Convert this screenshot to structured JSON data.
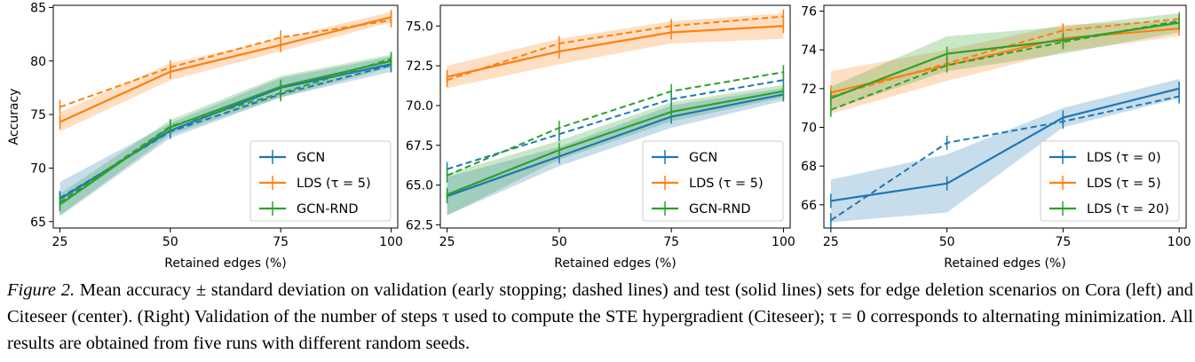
{
  "colors": {
    "blue": "#1f77b4",
    "orange": "#ff7f0e",
    "green": "#2ca02c"
  },
  "chart_data": [
    {
      "type": "line",
      "name": "cora",
      "xlabel": "Retained edges (%)",
      "ylabel": "Accuracy",
      "x": [
        25,
        50,
        75,
        100
      ],
      "xticks": [
        "25",
        "50",
        "75",
        "100"
      ],
      "yticks": [
        65,
        70,
        75,
        80,
        85
      ],
      "ytick_labels": [
        "65",
        "70",
        "75",
        "80",
        "85"
      ],
      "xlim": [
        23.5,
        101.5
      ],
      "ylim": [
        64.4,
        85.2
      ],
      "legend_position": "lower-right",
      "series": [
        {
          "name": "GCN",
          "color_key": "blue",
          "test": [
            67.1,
            73.5,
            77.5,
            79.7
          ],
          "std": [
            1.6,
            0.7,
            0.9,
            0.7
          ],
          "val": [
            67.2,
            73.4,
            76.9,
            79.6
          ]
        },
        {
          "name": "LDS (τ = 5)",
          "color_key": "orange",
          "test": [
            74.3,
            79.0,
            81.5,
            84.1
          ],
          "std": [
            0.9,
            0.8,
            0.6,
            0.5
          ],
          "val": [
            75.7,
            79.4,
            82.2,
            83.8
          ]
        },
        {
          "name": "GCN-RND",
          "color_key": "green",
          "test": [
            66.6,
            73.8,
            77.6,
            80.0
          ],
          "std": [
            1.0,
            0.7,
            1.0,
            0.6
          ],
          "val": [
            66.8,
            73.9,
            77.0,
            80.2
          ]
        }
      ]
    },
    {
      "type": "line",
      "name": "citeseer",
      "xlabel": "Retained edges (%)",
      "ylabel": "",
      "x": [
        25,
        50,
        75,
        100
      ],
      "xticks": [
        "25",
        "50",
        "75",
        "100"
      ],
      "yticks": [
        62.5,
        65.0,
        67.5,
        70.0,
        72.5,
        75.0
      ],
      "ytick_labels": [
        "62.5",
        "65.0",
        "67.5",
        "70.0",
        "72.5",
        "75.0"
      ],
      "xlim": [
        23.5,
        101.5
      ],
      "ylim": [
        62.3,
        76.3
      ],
      "legend_position": "lower-right",
      "series": [
        {
          "name": "GCN",
          "color_key": "blue",
          "test": [
            64.3,
            66.8,
            69.3,
            70.7
          ],
          "std": [
            1.2,
            0.6,
            0.7,
            0.4
          ],
          "val": [
            66.0,
            68.2,
            70.4,
            71.6
          ]
        },
        {
          "name": "LDS (τ = 5)",
          "color_key": "orange",
          "test": [
            71.8,
            73.4,
            74.6,
            75.0
          ],
          "std": [
            0.7,
            0.8,
            0.7,
            0.8
          ],
          "val": [
            71.6,
            73.9,
            75.0,
            75.6
          ]
        },
        {
          "name": "GCN-RND",
          "color_key": "green",
          "test": [
            64.4,
            67.2,
            69.6,
            70.9
          ],
          "std": [
            1.3,
            0.6,
            0.6,
            0.4
          ],
          "val": [
            65.6,
            68.6,
            70.9,
            72.1
          ]
        }
      ]
    },
    {
      "type": "line",
      "name": "tau-validation",
      "xlabel": "Retained edges (%)",
      "ylabel": "",
      "x": [
        25,
        50,
        75,
        100
      ],
      "xticks": [
        "25",
        "50",
        "75",
        "100"
      ],
      "yticks": [
        66,
        68,
        70,
        72,
        74,
        76
      ],
      "ytick_labels": [
        "66",
        "68",
        "70",
        "72",
        "74",
        "76"
      ],
      "xlim": [
        23.5,
        101.5
      ],
      "ylim": [
        64.8,
        76.3
      ],
      "legend_position": "lower-right",
      "series": [
        {
          "name": "LDS (τ = 0)",
          "color_key": "blue",
          "test": [
            66.2,
            67.1,
            70.5,
            72.0
          ],
          "std": [
            1.1,
            1.5,
            0.5,
            0.5
          ],
          "val": [
            65.2,
            69.2,
            70.3,
            71.6
          ]
        },
        {
          "name": "LDS (τ = 5)",
          "color_key": "orange",
          "test": [
            71.8,
            73.2,
            74.6,
            75.1
          ],
          "std": [
            1.1,
            0.8,
            0.7,
            0.4
          ],
          "val": [
            71.6,
            73.3,
            75.0,
            75.6
          ]
        },
        {
          "name": "LDS (τ = 20)",
          "color_key": "green",
          "test": [
            71.5,
            73.8,
            74.5,
            75.4
          ],
          "std": [
            0.6,
            0.9,
            0.7,
            0.5
          ],
          "val": [
            70.9,
            73.2,
            74.4,
            75.5
          ]
        }
      ]
    }
  ],
  "caption": {
    "label": "Figure 2.",
    "text": "Mean accuracy ± standard deviation on validation (early stopping; dashed lines) and test (solid lines) sets for edge deletion scenarios on Cora (left) and Citeseer (center). (Right) Validation of the number of steps τ used to compute the STE hypergradient (Citeseer); τ = 0 corresponds to alternating minimization. All results are obtained from five runs with different random seeds."
  }
}
